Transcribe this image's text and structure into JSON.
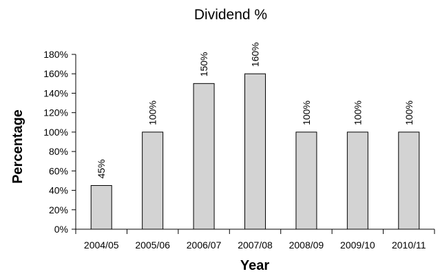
{
  "chart_data": {
    "type": "bar",
    "title": "Dividend %",
    "xlabel": "Year",
    "ylabel": "Percentage",
    "categories": [
      "2004/05",
      "2005/06",
      "2006/07",
      "2007/08",
      "2008/09",
      "2009/10",
      "2010/11"
    ],
    "values": [
      45,
      100,
      150,
      160,
      100,
      100,
      100
    ],
    "data_labels": [
      "45%",
      "100%",
      "150%",
      "160%",
      "100%",
      "100%",
      "100%"
    ],
    "ylim": [
      0,
      180
    ],
    "yticks": [
      0,
      20,
      40,
      60,
      80,
      100,
      120,
      140,
      160,
      180
    ],
    "ytick_labels": [
      "0%",
      "20%",
      "40%",
      "60%",
      "80%",
      "100%",
      "120%",
      "140%",
      "160%",
      "180%"
    ],
    "grid": false,
    "legend": "none",
    "colors": {
      "bar_fill": "#d3d3d3",
      "bar_stroke": "#000000",
      "axis": "#000000",
      "text": "#000000"
    }
  }
}
